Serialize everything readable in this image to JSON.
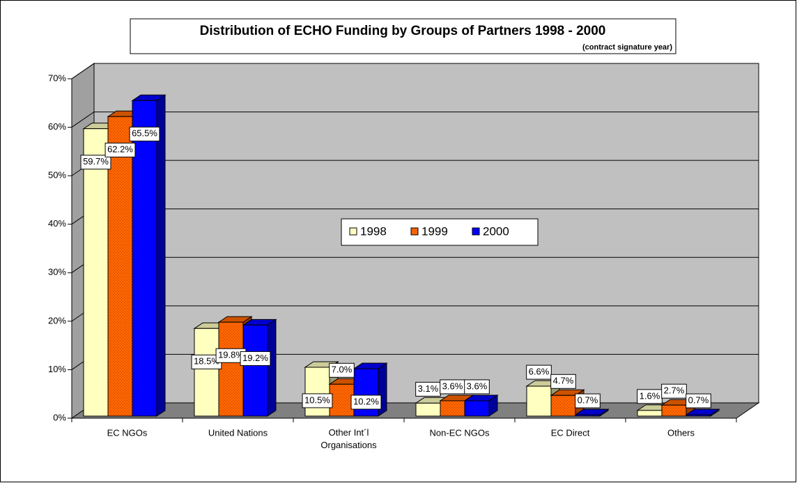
{
  "chart_data": {
    "type": "bar3d",
    "title": "Distribution of ECHO Funding by Groups of Partners 1998 - 2000",
    "subtitle": "(contract signature year)",
    "categories": [
      "EC NGOs",
      "United Nations",
      "Other Int´l Organisations",
      "Non-EC NGOs",
      "EC Direct",
      "Others"
    ],
    "series": [
      {
        "name": "1998",
        "color": "#ffffc0",
        "values": [
          59.7,
          18.5,
          10.5,
          3.1,
          6.6,
          1.6
        ],
        "value_labels": [
          "59.7%",
          "18.5%",
          "10.5%",
          "3.1%",
          "6.6%",
          "1.6%"
        ]
      },
      {
        "name": "1999",
        "color": "#ff6600",
        "values": [
          62.2,
          19.8,
          7.0,
          3.6,
          4.7,
          2.7
        ],
        "value_labels": [
          "62.2%",
          "19.8%",
          "7.0%",
          "3.6%",
          "4.7%",
          "2.7%"
        ]
      },
      {
        "name": "2000",
        "color": "#0000ff",
        "values": [
          65.5,
          19.2,
          10.2,
          3.6,
          0.7,
          0.7
        ],
        "value_labels": [
          "65.5%",
          "19.2%",
          "10.2%",
          "3.6%",
          "0.7%",
          "0.7%"
        ]
      }
    ],
    "ylim": [
      0,
      70
    ],
    "yticks": [
      {
        "value": 0,
        "label": "0%"
      },
      {
        "value": 10,
        "label": "10%"
      },
      {
        "value": 20,
        "label": "20%"
      },
      {
        "value": 30,
        "label": "30%"
      },
      {
        "value": 40,
        "label": "40%"
      },
      {
        "value": 50,
        "label": "50%"
      },
      {
        "value": 60,
        "label": "60%"
      },
      {
        "value": 70,
        "label": "70%"
      }
    ],
    "grid": true,
    "legend": "center"
  }
}
